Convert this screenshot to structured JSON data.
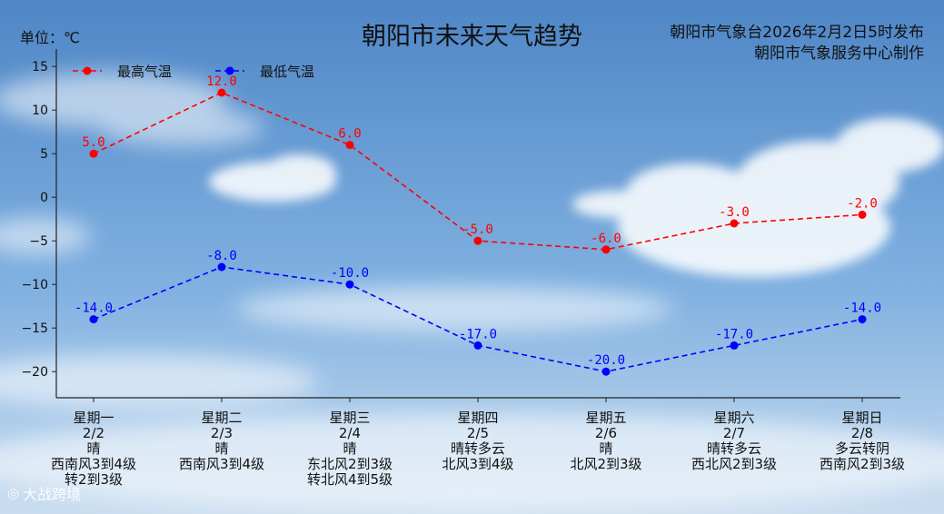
{
  "header": {
    "title": "朝阳市未来天气趋势",
    "unit": "单位：℃",
    "publish_line1": "朝阳市气象台2026年2月2日5时发布",
    "publish_line2": "朝阳市气象服务中心制作"
  },
  "colors": {
    "high": "#ff0000",
    "low": "#0000ff",
    "sky_top": "#4f86c6",
    "sky_bottom": "#c9ddf0"
  },
  "chart_data": {
    "type": "line",
    "categories": [
      "2/2",
      "2/3",
      "2/4",
      "2/5",
      "2/6",
      "2/7",
      "2/8"
    ],
    "series": [
      {
        "name": "最高气温",
        "values": [
          5.0,
          12.0,
          6.0,
          -5.0,
          -6.0,
          -3.0,
          -2.0
        ],
        "point_labels": [
          "5.0",
          "12.0",
          "6.0",
          "-5.0",
          "-6.0",
          "-3.0",
          "-2.0"
        ]
      },
      {
        "name": "最低气温",
        "values": [
          -14.0,
          -8.0,
          -10.0,
          -17.0,
          -20.0,
          -17.0,
          -14.0
        ],
        "point_labels": [
          "-14.0",
          "-8.0",
          "-10.0",
          "-17.0",
          "-20.0",
          "-17.0",
          "-14.0"
        ]
      }
    ],
    "ylim": [
      -23,
      17
    ],
    "yticks": [
      -20,
      -15,
      -10,
      -5,
      0,
      5,
      10,
      15
    ],
    "ytick_labels": [
      "−20",
      "−15",
      "−10",
      "−5",
      "0",
      "5",
      "10",
      "15"
    ],
    "line_style": "dashed",
    "legend_position": "top-left",
    "grid": false
  },
  "days": [
    {
      "weekday": "星期一",
      "date": "2/2",
      "weather": "晴",
      "wind": "西南风3到4级",
      "wind2": "转2到3级"
    },
    {
      "weekday": "星期二",
      "date": "2/3",
      "weather": "晴",
      "wind": "西南风3到4级",
      "wind2": ""
    },
    {
      "weekday": "星期三",
      "date": "2/4",
      "weather": "晴",
      "wind": "东北风2到3级",
      "wind2": "转北风4到5级"
    },
    {
      "weekday": "星期四",
      "date": "2/5",
      "weather": "晴转多云",
      "wind": "北风3到4级",
      "wind2": ""
    },
    {
      "weekday": "星期五",
      "date": "2/6",
      "weather": "晴",
      "wind": "北风2到3级",
      "wind2": ""
    },
    {
      "weekday": "星期六",
      "date": "2/7",
      "weather": "晴转多云",
      "wind": "西北风2到3级",
      "wind2": ""
    },
    {
      "weekday": "星期日",
      "date": "2/8",
      "weather": "多云转阴",
      "wind": "西南风2到3级",
      "wind2": ""
    }
  ],
  "watermark": {
    "icon": "camera-icon",
    "text": "大战跨境"
  }
}
